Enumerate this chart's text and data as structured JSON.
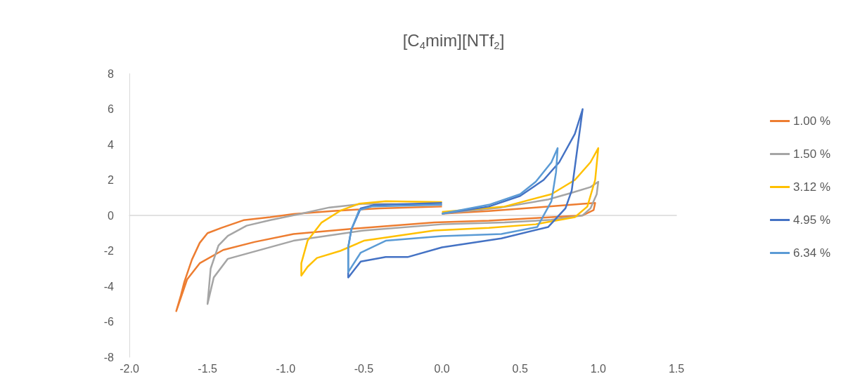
{
  "chart_data": {
    "type": "line",
    "title": "[C$_{4}$mim][NTf$_{2}$]",
    "legend": "right",
    "xlim": [
      -2.0,
      1.5
    ],
    "xticks": [
      {
        "value": -2,
        "label": "-2.0"
      },
      {
        "value": -1.5,
        "label": "-1.5"
      },
      {
        "value": -1,
        "label": "-1.0"
      },
      {
        "value": -0.5,
        "label": "-0.5"
      },
      {
        "value": 0,
        "label": "0.0"
      },
      {
        "value": 0.5,
        "label": "0.5"
      },
      {
        "value": 1,
        "label": "1.0"
      },
      {
        "value": 1.5,
        "label": "1.5"
      }
    ],
    "ylim": [
      -8,
      8
    ],
    "yticks": [
      -8,
      -6,
      -4,
      -2,
      0,
      2,
      4,
      6,
      8
    ],
    "series": [
      {
        "name": "1.00 %",
        "color": "#ed7d31",
        "x": [
          0,
          0.3,
          0.6,
          0.9,
          0.98,
          0.97,
          0.9,
          0.6,
          0.3,
          -0.05,
          -0.5,
          -0.95,
          -1.2,
          -1.4,
          -1.55,
          -1.63,
          -1.7,
          -1.67,
          -1.65,
          -1.6,
          -1.55,
          -1.5,
          -1.41,
          -1.27,
          -1.1,
          -0.95,
          -0.7,
          -0.4,
          0
        ],
        "values": [
          0.1,
          0.25,
          0.45,
          0.65,
          0.7,
          0.3,
          0.0,
          -0.15,
          -0.3,
          -0.4,
          -0.7,
          -1.05,
          -1.5,
          -1.95,
          -2.7,
          -3.6,
          -5.4,
          -4.5,
          -3.8,
          -2.5,
          -1.55,
          -1.0,
          -0.7,
          -0.27,
          -0.1,
          0.08,
          0.25,
          0.4,
          0.5
        ]
      },
      {
        "name": "1.50 %",
        "color": "#a5a5a5",
        "x": [
          0,
          0.38,
          0.68,
          0.83,
          0.95,
          1.0,
          0.99,
          0.95,
          0.9,
          0.7,
          0.4,
          0,
          -0.5,
          -0.95,
          -1.37,
          -1.46,
          -1.5,
          -1.48,
          -1.43,
          -1.37,
          -1.25,
          -1.1,
          -0.89,
          -0.72,
          -0.5,
          0
        ],
        "values": [
          0.1,
          0.45,
          0.9,
          1.28,
          1.6,
          1.9,
          1.2,
          0.4,
          0.0,
          -0.25,
          -0.4,
          -0.5,
          -0.85,
          -1.43,
          -2.45,
          -3.5,
          -5.0,
          -3.0,
          -1.7,
          -1.15,
          -0.58,
          -0.27,
          0.12,
          0.45,
          0.66,
          0.6
        ]
      },
      {
        "name": "3.12 %",
        "color": "#ffc000",
        "x": [
          0,
          0.4,
          0.7,
          0.85,
          0.95,
          1.0,
          0.98,
          0.93,
          0.85,
          0.6,
          0.3,
          -0.05,
          -0.5,
          -0.65,
          -0.8,
          -0.86,
          -0.9,
          -0.9,
          -0.86,
          -0.77,
          -0.65,
          -0.53,
          -0.36,
          0
        ],
        "values": [
          0.2,
          0.5,
          1.2,
          2.0,
          3.0,
          3.8,
          2.0,
          0.5,
          -0.1,
          -0.5,
          -0.7,
          -0.85,
          -1.43,
          -2.0,
          -2.4,
          -2.9,
          -3.4,
          -2.7,
          -1.43,
          -0.4,
          0.27,
          0.66,
          0.8,
          0.75
        ]
      },
      {
        "name": "4.95 %",
        "color": "#4472c4",
        "x": [
          0,
          0.3,
          0.5,
          0.65,
          0.75,
          0.85,
          0.9,
          0.83,
          0.79,
          0.68,
          0.38,
          0,
          -0.22,
          -0.36,
          -0.52,
          -0.59,
          -0.6,
          -0.6,
          -0.58,
          -0.52,
          -0.44,
          0
        ],
        "values": [
          0.1,
          0.5,
          1.1,
          2.0,
          3.0,
          4.6,
          6.0,
          1.4,
          0.4,
          -0.65,
          -1.3,
          -1.8,
          -2.35,
          -2.35,
          -2.6,
          -3.4,
          -3.5,
          -1.8,
          -0.8,
          0.4,
          0.58,
          0.7
        ]
      },
      {
        "name": "6.34 %",
        "color": "#5b9bd5",
        "x": [
          0,
          0.3,
          0.5,
          0.6,
          0.7,
          0.74,
          0.73,
          0.7,
          0.61,
          0.38,
          0,
          -0.36,
          -0.52,
          -0.6,
          -0.6,
          -0.58,
          -0.53,
          -0.45,
          0
        ],
        "values": [
          0.1,
          0.6,
          1.2,
          1.9,
          3.0,
          3.8,
          2.45,
          0.8,
          -0.65,
          -1.05,
          -1.17,
          -1.43,
          -2.1,
          -3.2,
          -1.8,
          -0.8,
          0.3,
          0.5,
          0.6
        ]
      }
    ]
  }
}
